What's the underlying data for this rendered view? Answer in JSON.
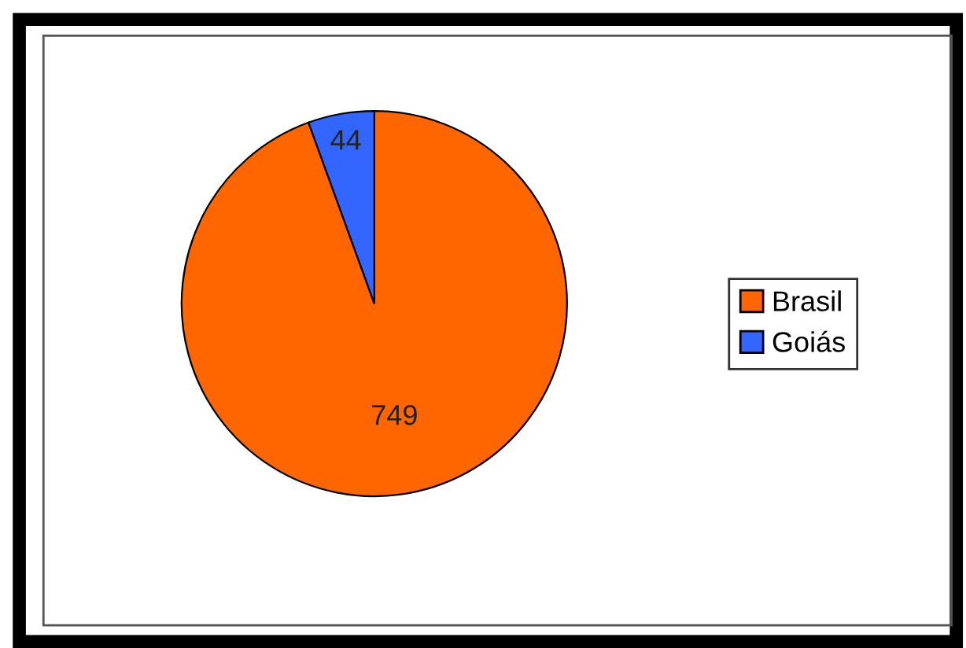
{
  "chart_data": {
    "type": "pie",
    "categories": [
      "Brasil",
      "Goiás"
    ],
    "values": [
      749,
      44
    ],
    "colors": [
      "#ff6600",
      "#3366ff"
    ],
    "data_labels": true,
    "legend": "right"
  }
}
